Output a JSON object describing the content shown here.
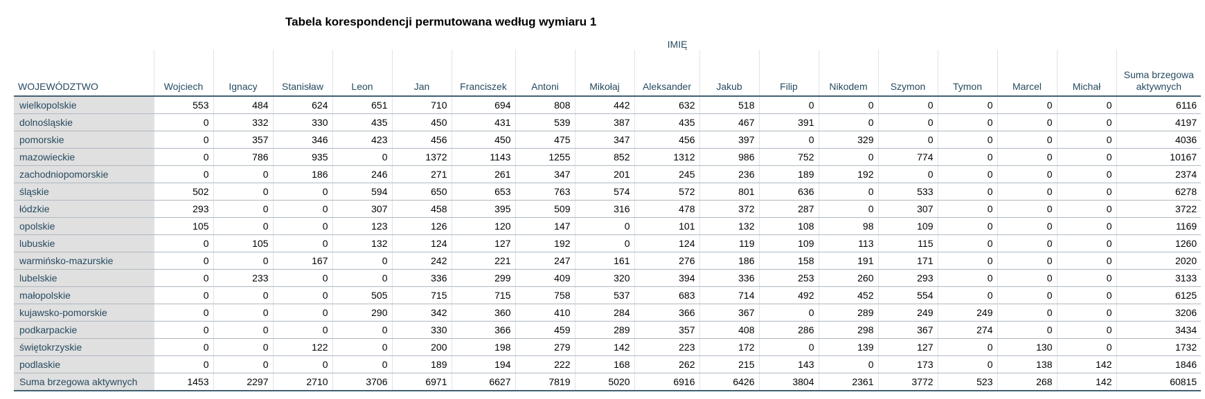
{
  "title": "Tabela korespondencji permutowana według wymiaru 1",
  "column_group": "IMIĘ",
  "row_group": "WOJEWÓDZTWO",
  "columns": [
    "Wojciech",
    "Ignacy",
    "Stanisław",
    "Leon",
    "Jan",
    "Franciszek",
    "Antoni",
    "Mikołaj",
    "Aleksander",
    "Jakub",
    "Filip",
    "Nikodem",
    "Szymon",
    "Tymon",
    "Marcel",
    "Michał",
    "Suma brzegowa aktywnych"
  ],
  "rows": [
    {
      "label": "wielkopolskie",
      "values": [
        "553",
        "484",
        "624",
        "651",
        "710",
        "694",
        "808",
        "442",
        "632",
        "518",
        "0",
        "0",
        "0",
        "0",
        "0",
        "0",
        "6116"
      ]
    },
    {
      "label": "dolnośląskie",
      "values": [
        "0",
        "332",
        "330",
        "435",
        "450",
        "431",
        "539",
        "387",
        "435",
        "467",
        "391",
        "0",
        "0",
        "0",
        "0",
        "0",
        "4197"
      ]
    },
    {
      "label": "pomorskie",
      "values": [
        "0",
        "357",
        "346",
        "423",
        "456",
        "450",
        "475",
        "347",
        "456",
        "397",
        "0",
        "329",
        "0",
        "0",
        "0",
        "0",
        "4036"
      ]
    },
    {
      "label": "mazowieckie",
      "values": [
        "0",
        "786",
        "935",
        "0",
        "1372",
        "1143",
        "1255",
        "852",
        "1312",
        "986",
        "752",
        "0",
        "774",
        "0",
        "0",
        "0",
        "10167"
      ]
    },
    {
      "label": "zachodniopomorskie",
      "values": [
        "0",
        "0",
        "186",
        "246",
        "271",
        "261",
        "347",
        "201",
        "245",
        "236",
        "189",
        "192",
        "0",
        "0",
        "0",
        "0",
        "2374"
      ]
    },
    {
      "label": "śląskie",
      "values": [
        "502",
        "0",
        "0",
        "594",
        "650",
        "653",
        "763",
        "574",
        "572",
        "801",
        "636",
        "0",
        "533",
        "0",
        "0",
        "0",
        "6278"
      ]
    },
    {
      "label": "łódzkie",
      "values": [
        "293",
        "0",
        "0",
        "307",
        "458",
        "395",
        "509",
        "316",
        "478",
        "372",
        "287",
        "0",
        "307",
        "0",
        "0",
        "0",
        "3722"
      ]
    },
    {
      "label": "opolskie",
      "values": [
        "105",
        "0",
        "0",
        "123",
        "126",
        "120",
        "147",
        "0",
        "101",
        "132",
        "108",
        "98",
        "109",
        "0",
        "0",
        "0",
        "1169"
      ]
    },
    {
      "label": "lubuskie",
      "values": [
        "0",
        "105",
        "0",
        "132",
        "124",
        "127",
        "192",
        "0",
        "124",
        "119",
        "109",
        "113",
        "115",
        "0",
        "0",
        "0",
        "1260"
      ]
    },
    {
      "label": "warmińsko-mazurskie",
      "values": [
        "0",
        "0",
        "167",
        "0",
        "242",
        "221",
        "247",
        "161",
        "276",
        "186",
        "158",
        "191",
        "171",
        "0",
        "0",
        "0",
        "2020"
      ]
    },
    {
      "label": "lubelskie",
      "values": [
        "0",
        "233",
        "0",
        "0",
        "336",
        "299",
        "409",
        "320",
        "394",
        "336",
        "253",
        "260",
        "293",
        "0",
        "0",
        "0",
        "3133"
      ]
    },
    {
      "label": "małopolskie",
      "values": [
        "0",
        "0",
        "0",
        "505",
        "715",
        "715",
        "758",
        "537",
        "683",
        "714",
        "492",
        "452",
        "554",
        "0",
        "0",
        "0",
        "6125"
      ]
    },
    {
      "label": "kujawsko-pomorskie",
      "values": [
        "0",
        "0",
        "0",
        "290",
        "342",
        "360",
        "410",
        "284",
        "366",
        "367",
        "0",
        "289",
        "249",
        "249",
        "0",
        "0",
        "3206"
      ]
    },
    {
      "label": "podkarpackie",
      "values": [
        "0",
        "0",
        "0",
        "0",
        "330",
        "366",
        "459",
        "289",
        "357",
        "408",
        "286",
        "298",
        "367",
        "274",
        "0",
        "0",
        "3434"
      ]
    },
    {
      "label": "świętokrzyskie",
      "values": [
        "0",
        "0",
        "122",
        "0",
        "200",
        "198",
        "279",
        "142",
        "223",
        "172",
        "0",
        "139",
        "127",
        "0",
        "130",
        "0",
        "1732"
      ]
    },
    {
      "label": "podlaskie",
      "values": [
        "0",
        "0",
        "0",
        "0",
        "189",
        "194",
        "222",
        "168",
        "262",
        "215",
        "143",
        "0",
        "173",
        "0",
        "138",
        "142",
        "1846"
      ]
    }
  ],
  "total_row": {
    "label": "Suma brzegowa aktywnych",
    "values": [
      "1453",
      "2297",
      "2710",
      "3706",
      "6971",
      "6627",
      "7819",
      "5020",
      "6916",
      "6426",
      "3804",
      "2361",
      "3772",
      "523",
      "268",
      "142",
      "60815"
    ]
  }
}
